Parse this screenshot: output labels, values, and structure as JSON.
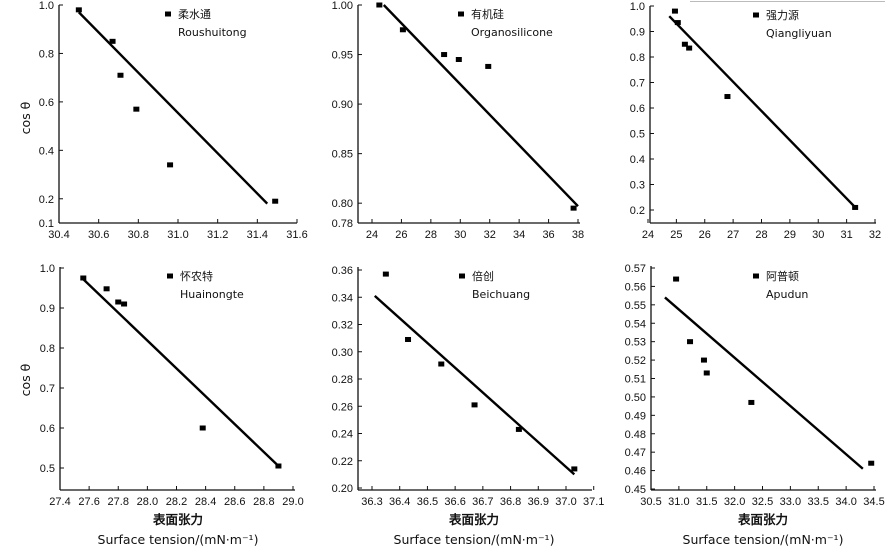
{
  "y_axis_label": "cos θ",
  "x_axis_label_cn": "表面张力",
  "x_axis_label_en": "Surface tension/(mN·m⁻¹)",
  "chart_data": [
    {
      "type": "scatter",
      "legend_cn": "柔水通",
      "legend_en": "Roushuitong",
      "legend_position": "top-right",
      "xlim": [
        30.4,
        31.6
      ],
      "ylim": [
        0.1,
        1.0
      ],
      "xticks": [
        "30.4",
        "30.6",
        "30.8",
        "31.0",
        "31.2",
        "31.4",
        "31.6"
      ],
      "yticks": [
        "0.1",
        "0.2",
        "0.4",
        "0.6",
        "0.8",
        "1.0"
      ],
      "points": [
        [
          30.5,
          0.98
        ],
        [
          30.67,
          0.85
        ],
        [
          30.71,
          0.71
        ],
        [
          30.79,
          0.57
        ],
        [
          30.96,
          0.34
        ],
        [
          31.49,
          0.19
        ]
      ],
      "fit_line": [
        [
          30.5,
          0.97
        ],
        [
          31.45,
          0.18
        ]
      ]
    },
    {
      "type": "scatter",
      "legend_cn": "有机硅",
      "legend_en": "Organosilicone",
      "legend_position": "top-right",
      "xlim": [
        24,
        38
      ],
      "ylim": [
        0.78,
        1.0
      ],
      "xticks": [
        "24",
        "26",
        "28",
        "30",
        "32",
        "34",
        "36",
        "38"
      ],
      "yticks": [
        "0.78",
        "0.80",
        "0.85",
        "0.90",
        "0.95",
        "1.00"
      ],
      "points": [
        [
          24.5,
          1.0
        ],
        [
          26.1,
          0.975
        ],
        [
          28.9,
          0.95
        ],
        [
          29.9,
          0.945
        ],
        [
          31.9,
          0.938
        ],
        [
          37.7,
          0.795
        ]
      ],
      "fit_line": [
        [
          24.8,
          1.0
        ],
        [
          38.0,
          0.797
        ]
      ]
    },
    {
      "type": "scatter",
      "legend_cn": "强力源",
      "legend_en": "Qiangliyuan",
      "legend_position": "top-right",
      "xlim": [
        24,
        32
      ],
      "ylim": [
        0.2,
        1.0
      ],
      "xticks": [
        "24",
        "25",
        "26",
        "27",
        "28",
        "29",
        "30",
        "31",
        "32"
      ],
      "yticks": [
        "0.2",
        "0.3",
        "0.4",
        "0.5",
        "0.6",
        "0.7",
        "0.8",
        "0.9",
        "1.0"
      ],
      "points": [
        [
          24.95,
          0.98
        ],
        [
          25.05,
          0.935
        ],
        [
          25.3,
          0.85
        ],
        [
          25.45,
          0.835
        ],
        [
          26.8,
          0.645
        ],
        [
          31.3,
          0.21
        ]
      ],
      "fit_line": [
        [
          24.75,
          0.96
        ],
        [
          31.35,
          0.205
        ]
      ]
    },
    {
      "type": "scatter",
      "legend_cn": "怀农特",
      "legend_en": "Huainongte",
      "legend_position": "top-right",
      "xlim": [
        27.4,
        29.0
      ],
      "ylim": [
        0.5,
        1.0
      ],
      "xticks": [
        "27.4",
        "27.6",
        "27.8",
        "28.0",
        "28.2",
        "28.4",
        "28.6",
        "28.8",
        "29.0"
      ],
      "yticks": [
        "0.5",
        "0.6",
        "0.7",
        "0.8",
        "0.9",
        "1.0"
      ],
      "points": [
        [
          27.56,
          0.975
        ],
        [
          27.72,
          0.948
        ],
        [
          27.8,
          0.915
        ],
        [
          27.84,
          0.91
        ],
        [
          28.38,
          0.6
        ],
        [
          28.9,
          0.505
        ]
      ],
      "fit_line": [
        [
          27.56,
          0.972
        ],
        [
          28.9,
          0.505
        ]
      ]
    },
    {
      "type": "scatter",
      "legend_cn": "倍创",
      "legend_en": "Beichuang",
      "legend_position": "top-right",
      "xlim": [
        36.3,
        37.0
      ],
      "ylim": [
        0.2,
        0.36
      ],
      "xticks": [
        "36.3",
        "36.4",
        "36.5",
        "36.6",
        "36.7",
        "36.8",
        "36.9",
        "37.0",
        "37.1"
      ],
      "yticks": [
        "0.20",
        "0.22",
        "0.24",
        "0.26",
        "0.28",
        "0.30",
        "0.32",
        "0.34",
        "0.36"
      ],
      "points": [
        [
          36.35,
          0.357
        ],
        [
          36.43,
          0.309
        ],
        [
          36.55,
          0.291
        ],
        [
          36.67,
          0.261
        ],
        [
          36.83,
          0.243
        ],
        [
          37.03,
          0.214
        ]
      ],
      "fit_line": [
        [
          36.31,
          0.341
        ],
        [
          37.03,
          0.21
        ]
      ]
    },
    {
      "type": "scatter",
      "legend_cn": "阿普顿",
      "legend_en": "Apudun",
      "legend_position": "top-right",
      "xlim": [
        30.5,
        34.5
      ],
      "ylim": [
        0.45,
        0.57
      ],
      "xticks": [
        "30.5",
        "31.0",
        "31.5",
        "32.0",
        "32.5",
        "33.0",
        "33.5",
        "34.0",
        "34.5"
      ],
      "yticks": [
        "0.45",
        "0.46",
        "0.47",
        "0.48",
        "0.49",
        "0.50",
        "0.51",
        "0.52",
        "0.53",
        "0.54",
        "0.55",
        "0.56",
        "0.57"
      ],
      "points": [
        [
          30.95,
          0.564
        ],
        [
          31.2,
          0.53
        ],
        [
          31.45,
          0.52
        ],
        [
          31.5,
          0.513
        ],
        [
          32.3,
          0.497
        ],
        [
          34.45,
          0.464
        ]
      ],
      "fit_line": [
        [
          30.75,
          0.554
        ],
        [
          34.3,
          0.461
        ]
      ]
    }
  ]
}
